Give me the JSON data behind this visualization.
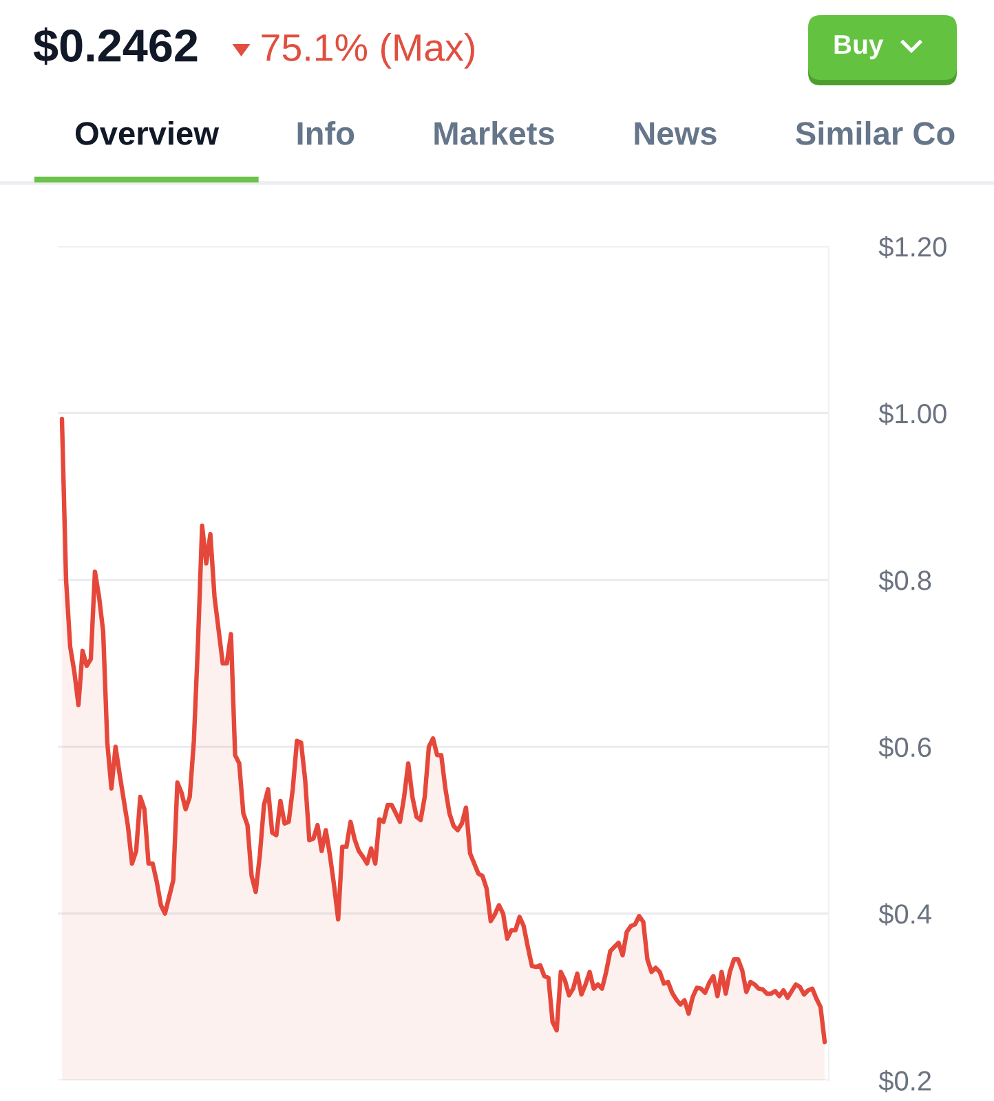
{
  "chart_data": {
    "type": "area",
    "title": "$0.2462",
    "subtitle": "75.1% (Max)",
    "annotations": [
      "Buy",
      "Overview",
      "Info",
      "Markets",
      "News",
      "Similar Co"
    ],
    "categories": [
      null,
      null,
      null,
      null,
      null,
      null,
      null,
      null,
      null,
      null,
      null,
      null,
      null,
      null,
      null,
      null,
      null,
      null,
      null,
      null,
      null,
      null,
      null,
      null,
      null,
      null,
      null,
      null,
      null,
      null,
      null,
      null,
      null,
      null,
      null,
      null,
      null,
      null,
      null,
      null,
      null,
      null,
      null,
      null,
      null,
      null,
      null,
      null,
      null,
      null,
      null,
      null,
      null,
      null,
      null,
      null,
      null,
      null,
      null,
      null,
      null,
      null,
      null,
      null,
      null,
      null,
      null,
      null,
      null,
      null,
      null,
      null,
      null,
      null,
      null,
      null,
      null,
      null,
      null,
      null,
      null,
      null,
      null,
      null,
      null,
      null,
      null,
      null,
      null,
      null,
      null,
      null,
      null,
      null,
      null,
      null,
      null,
      null,
      null,
      null,
      null,
      null,
      null,
      null,
      null,
      null,
      null,
      null,
      null,
      null,
      null,
      null,
      null,
      null,
      null,
      null,
      null,
      null,
      null,
      null,
      null,
      null,
      null,
      null,
      null,
      null,
      null,
      null,
      null,
      null,
      null,
      null,
      null,
      null,
      null,
      null,
      null,
      null,
      null,
      null,
      null,
      null,
      null,
      null,
      null,
      null,
      null,
      null,
      null,
      null,
      null,
      null,
      null,
      null,
      null,
      null,
      null,
      null,
      null,
      null,
      null,
      null,
      null,
      null,
      null,
      null,
      null,
      null,
      null,
      null,
      null,
      null,
      null,
      null,
      null,
      null,
      null,
      null,
      null,
      null,
      null,
      null,
      null,
      null,
      null,
      null
    ],
    "values": [
      0.993,
      0.8,
      0.72,
      0.69,
      0.65,
      0.715,
      0.697,
      0.705,
      0.81,
      0.78,
      0.738,
      0.605,
      0.55,
      0.6,
      0.567,
      0.536,
      0.505,
      0.46,
      0.475,
      0.54,
      0.525,
      0.46,
      0.46,
      0.438,
      0.41,
      0.4,
      0.42,
      0.44,
      0.557,
      0.545,
      0.525,
      0.54,
      0.607,
      0.725,
      0.865,
      0.82,
      0.855,
      0.78,
      0.74,
      0.7,
      0.7,
      0.735,
      0.59,
      0.58,
      0.52,
      0.506,
      0.445,
      0.426,
      0.47,
      0.53,
      0.549,
      0.497,
      0.494,
      0.535,
      0.508,
      0.51,
      0.55,
      0.607,
      0.605,
      0.56,
      0.488,
      0.49,
      0.506,
      0.475,
      0.5,
      0.47,
      0.434,
      0.393,
      0.48,
      0.48,
      0.51,
      0.489,
      0.475,
      0.468,
      0.46,
      0.478,
      0.46,
      0.513,
      0.51,
      0.53,
      0.53,
      0.52,
      0.51,
      0.54,
      0.58,
      0.54,
      0.516,
      0.512,
      0.54,
      0.6,
      0.61,
      0.59,
      0.59,
      0.55,
      0.52,
      0.505,
      0.5,
      0.508,
      0.527,
      0.472,
      0.46,
      0.448,
      0.445,
      0.43,
      0.391,
      0.399,
      0.41,
      0.4,
      0.37,
      0.38,
      0.38,
      0.396,
      0.385,
      0.36,
      0.337,
      0.336,
      0.338,
      0.325,
      0.323,
      0.27,
      0.26,
      0.33,
      0.32,
      0.302,
      0.31,
      0.328,
      0.303,
      0.315,
      0.33,
      0.31,
      0.315,
      0.31,
      0.33,
      0.355,
      0.36,
      0.365,
      0.35,
      0.378,
      0.385,
      0.387,
      0.397,
      0.39,
      0.345,
      0.33,
      0.335,
      0.33,
      0.316,
      0.318,
      0.305,
      0.297,
      0.291,
      0.296,
      0.28,
      0.3,
      0.311,
      0.31,
      0.305,
      0.317,
      0.325,
      0.301,
      0.33,
      0.304,
      0.33,
      0.345,
      0.345,
      0.332,
      0.306,
      0.318,
      0.315,
      0.31,
      0.309,
      0.304,
      0.304,
      0.307,
      0.301,
      0.308,
      0.299,
      0.307,
      0.315,
      0.312,
      0.303,
      0.308,
      0.31,
      0.298,
      0.288,
      0.246
    ],
    "color": "#e5483a",
    "ylim": [
      0.2,
      1.2
    ],
    "yticks": [
      {
        "value": 0.2,
        "label": "$0.2"
      },
      {
        "value": 0.4,
        "label": "$0.4"
      },
      {
        "value": 0.6,
        "label": "$0.6"
      },
      {
        "value": 0.8,
        "label": "$0.8"
      },
      {
        "value": 1.0,
        "label": "$1.00"
      },
      {
        "value": 1.2,
        "label": "$1.20"
      }
    ],
    "grid": "y",
    "tick_labels": "y"
  }
}
